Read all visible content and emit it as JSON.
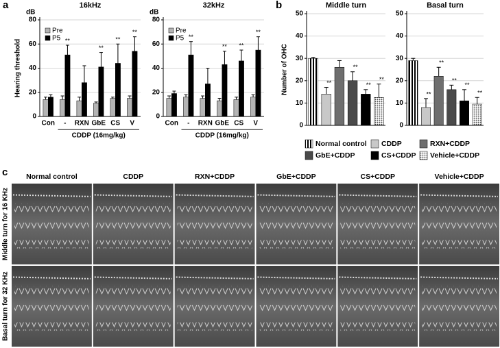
{
  "panels": [
    "a",
    "b",
    "c"
  ],
  "chart_data": [
    {
      "type": "bar",
      "title": "16kHz",
      "y_unit": "dB",
      "ylabel": "Hearing threshold",
      "categories": [
        "Con",
        "-",
        "RXN",
        "GbE",
        "CS",
        "V"
      ],
      "group_label": "CDDP (16mg/kg)",
      "series": [
        {
          "name": "Pre",
          "color": "#b4b4b4",
          "values": [
            14,
            14,
            13,
            11,
            15,
            15
          ],
          "errors": [
            2,
            3,
            3,
            1,
            1,
            2
          ]
        },
        {
          "name": "P5",
          "color": "#000000",
          "values": [
            16,
            51,
            28,
            41,
            44,
            54
          ],
          "errors": [
            2,
            8,
            14,
            12,
            16,
            12
          ],
          "significance": [
            null,
            "**",
            null,
            "**",
            "**",
            "**"
          ]
        }
      ],
      "ylim": [
        0,
        80
      ],
      "yticks": [
        0,
        20,
        40,
        60,
        80
      ],
      "grid": true,
      "legend": "upper left"
    },
    {
      "type": "bar",
      "title": "32kHz",
      "y_unit": "dB",
      "categories": [
        "Con",
        "-",
        "RXN",
        "GbE",
        "CS",
        "V"
      ],
      "group_label": "CDDP (16mg/kg)",
      "series": [
        {
          "name": "Pre",
          "color": "#b4b4b4",
          "values": [
            15,
            16,
            15,
            13,
            14,
            16
          ],
          "errors": [
            2,
            2,
            2,
            2,
            2,
            2
          ]
        },
        {
          "name": "P5",
          "color": "#000000",
          "values": [
            19,
            51,
            27,
            43,
            46,
            55
          ],
          "errors": [
            2,
            11,
            13,
            11,
            9,
            11
          ],
          "significance": [
            null,
            "**",
            null,
            "**",
            "**",
            "**"
          ]
        }
      ],
      "ylim": [
        0,
        80
      ],
      "yticks": [
        0,
        20,
        40,
        60,
        80
      ],
      "grid": true,
      "legend": "upper left"
    },
    {
      "type": "bar",
      "title": "Middle turn",
      "ylabel": "Number of OHC",
      "categories": [
        "Normal control",
        "CDDP",
        "RXN+CDDP",
        "GbE+CDDP",
        "CS+CDDP",
        "Vehicle+CDDP"
      ],
      "colors": [
        "stripes",
        "#c8c8c8",
        "#6e6e6e",
        "#4a4a4a",
        "#000000",
        "dots"
      ],
      "values": [
        30,
        14,
        26,
        20,
        14,
        12.5
      ],
      "errors": [
        0.5,
        3,
        3,
        4,
        2,
        6
      ],
      "significance": [
        null,
        "**",
        null,
        "**",
        "**",
        "**"
      ],
      "ylim": [
        0,
        50
      ],
      "yticks": [
        0,
        10,
        20,
        30,
        40,
        50
      ],
      "grid": true
    },
    {
      "type": "bar",
      "title": "Basal turn",
      "categories": [
        null,
        null,
        null,
        null,
        null,
        null
      ],
      "colors": [
        "stripes",
        "#c8c8c8",
        "#6e6e6e",
        "#4a4a4a",
        "#000000",
        "dots"
      ],
      "values": [
        29,
        8,
        22,
        16,
        11,
        9.5
      ],
      "errors": [
        1,
        4,
        4,
        2,
        5,
        3
      ],
      "significance": [
        null,
        "**",
        "**",
        "**",
        "**",
        "**"
      ],
      "ylim": [
        0,
        50
      ],
      "yticks": [
        0,
        10,
        20,
        30,
        40,
        50
      ],
      "grid": true
    }
  ],
  "sem": {
    "columns": [
      "Normal control",
      "CDDP",
      "RXN+CDDP",
      "GbE+CDDP",
      "CS+CDDP",
      "Vehicle+CDDP"
    ],
    "rows": [
      "Middle turn for 16 KHz",
      "Basal turn for 32 KHz"
    ]
  }
}
